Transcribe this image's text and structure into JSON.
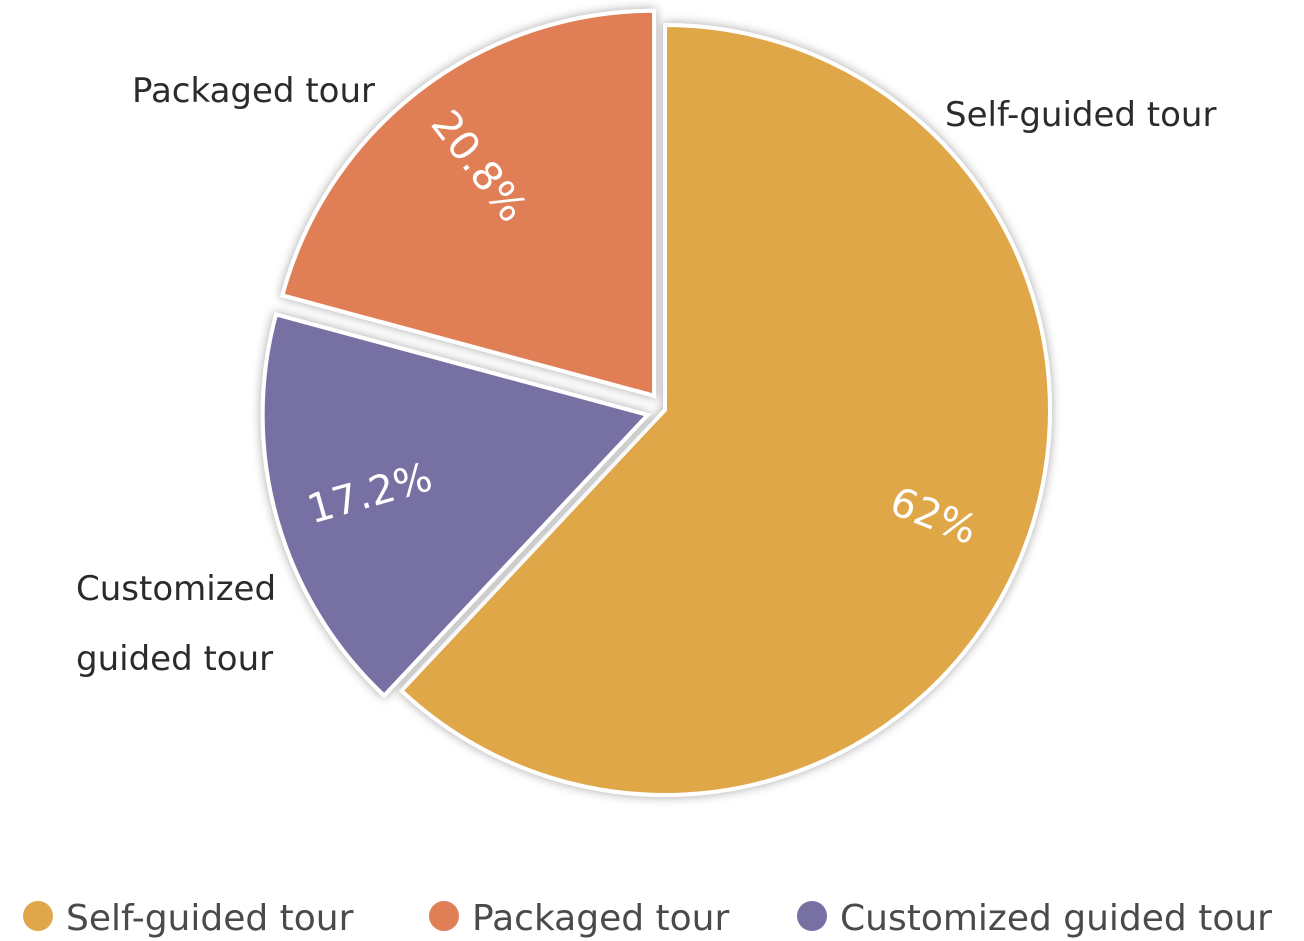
{
  "chart_data": {
    "type": "pie",
    "slices": [
      {
        "label": "Self-guided tour",
        "value": 62,
        "value_label": "62%",
        "color": "#E0A74A"
      },
      {
        "label": "Customized guided tour",
        "value": 17.2,
        "value_label": "17.2%",
        "color": "#7670A3"
      },
      {
        "label": "Packaged tour",
        "value": 20.8,
        "value_label": "20.8%",
        "color": "#E07F56"
      }
    ],
    "slice_labels": {
      "self_guided": "Self-guided tour",
      "packaged": "Packaged tour",
      "customized_line1": "Customized",
      "customized_line2": "guided tour"
    },
    "legend": {
      "placement": "bottom",
      "entries": [
        {
          "label": "Self-guided tour",
          "color": "#E0A74A"
        },
        {
          "label": "Packaged tour",
          "color": "#E07F56"
        },
        {
          "label": "Customized guided tour",
          "color": "#7670A3"
        }
      ]
    }
  }
}
